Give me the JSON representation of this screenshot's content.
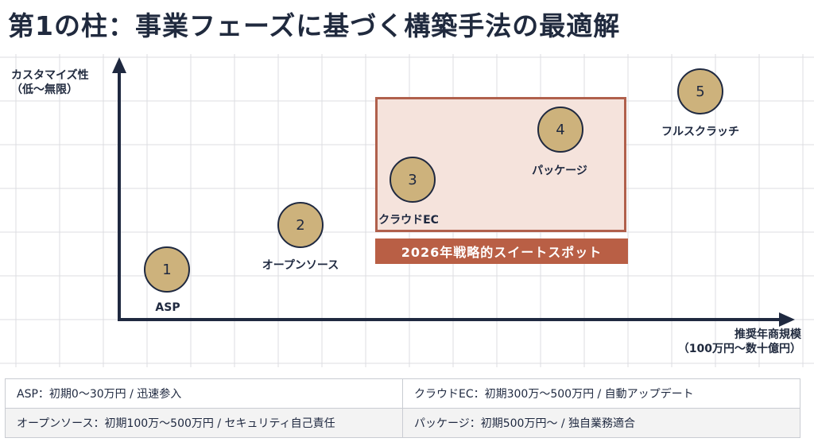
{
  "title": "第1の柱：事業フェーズに基づく構築手法の最適解",
  "y_axis_label": [
    "カスタマイズ性",
    "（低〜無限）"
  ],
  "x_axis_label": [
    "推奨年商規模",
    "（100万円〜数十億円）"
  ],
  "sweet_spot_label": "2026年戦略的スイートスポット",
  "nodes": [
    {
      "number": "1",
      "label": "ASP"
    },
    {
      "number": "2",
      "label": "オープンソース"
    },
    {
      "number": "3",
      "label": "クラウドEC"
    },
    {
      "number": "4",
      "label": "パッケージ"
    },
    {
      "number": "5",
      "label": "フルスクラッチ"
    }
  ],
  "table": [
    [
      "ASP：初期0〜30万円 / 迅速参入",
      "クラウドEC：初期300万〜500万円 / 自動アップデート"
    ],
    [
      "オープンソース：初期100万〜500万円 / セキュリティ自己責任",
      "パッケージ：初期500万円〜 / 独自業務適合"
    ]
  ],
  "colors": {
    "axis": "#1f2940",
    "node_fill": "#cdb27c",
    "sweet_spot_fill": "#f5e3dc",
    "sweet_spot_border": "#b0604c",
    "banner": "#b95f45"
  }
}
